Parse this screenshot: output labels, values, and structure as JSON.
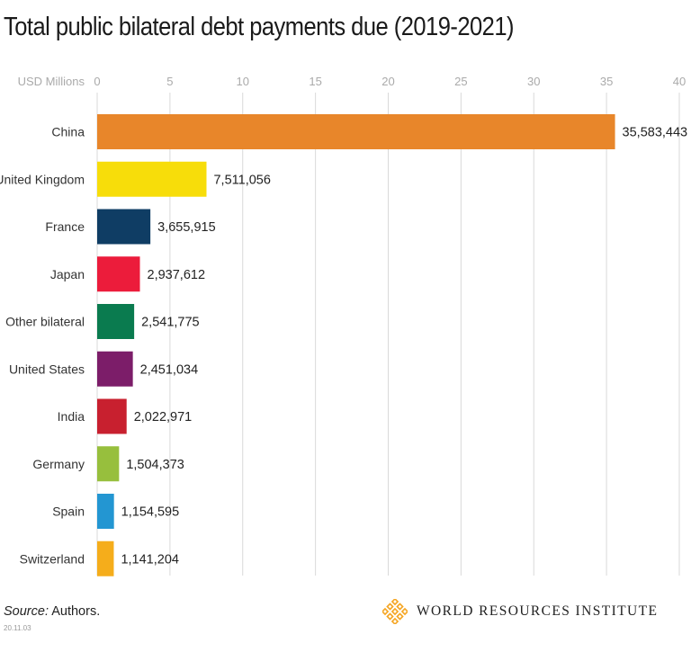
{
  "title": "Total public bilateral debt payments due (2019-2021)",
  "source_label": "Source:",
  "source_text": "Authors.",
  "date_stamp": "20.11.03",
  "logo_text": "WORLD RESOURCES INSTITUTE",
  "logo_icon": "wri-diamond-logo-icon",
  "logo_color": "#f5a623",
  "chart_data": {
    "type": "bar",
    "orientation": "horizontal",
    "title": "Total public bilateral debt payments due (2019-2021)",
    "xlabel": "USD Millions",
    "ylabel": "",
    "xlim": [
      0,
      40
    ],
    "xticks": [
      0,
      5,
      10,
      15,
      20,
      25,
      30,
      35,
      40
    ],
    "grid": true,
    "categories": [
      "China",
      "United Kingdom",
      "France",
      "Japan",
      "Other bilateral",
      "United States",
      "India",
      "Germany",
      "Spain",
      "Switzerland"
    ],
    "values": [
      35.583443,
      7.511056,
      3.655915,
      2.937612,
      2.541775,
      2.451034,
      2.022971,
      1.504373,
      1.154595,
      1.141204
    ],
    "labels": [
      "35,583,443",
      "7,511,056",
      "3,655,915",
      "2,937,612",
      "2,541,775",
      "2,451,034",
      "2,022,971",
      "1,504,373",
      "1,154,595",
      "1,141,204"
    ],
    "colors": [
      "#e8862a",
      "#f7dd0a",
      "#0f3d64",
      "#ec1c3b",
      "#0a7b4f",
      "#7c1d69",
      "#c8202f",
      "#97bf3d",
      "#2396d2",
      "#f5ad1b"
    ]
  }
}
